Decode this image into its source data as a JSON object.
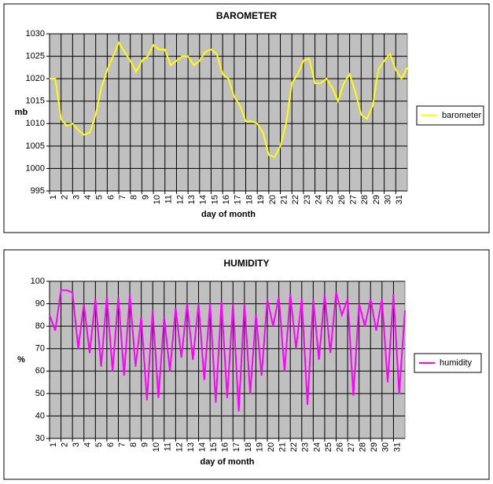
{
  "chart_data": [
    {
      "type": "line",
      "title": "BAROMETER",
      "x_label": "day of month",
      "y_label": "mb",
      "xlim": [
        1,
        32
      ],
      "xticks": [
        1,
        2,
        3,
        4,
        5,
        6,
        7,
        8,
        9,
        10,
        11,
        12,
        13,
        14,
        15,
        16,
        17,
        18,
        19,
        20,
        21,
        22,
        23,
        24,
        25,
        26,
        27,
        28,
        29,
        30,
        31
      ],
      "ylim": [
        995,
        1030
      ],
      "yticks": [
        995,
        1000,
        1005,
        1010,
        1015,
        1020,
        1025,
        1030
      ],
      "grid": true,
      "legend": "right",
      "series": [
        {
          "name": "barometer",
          "color": "#ffff00",
          "x": [
            1,
            1.5,
            2,
            2.5,
            3,
            3.5,
            4,
            4.5,
            5,
            5.5,
            6,
            6.5,
            7,
            7.5,
            8,
            8.5,
            9,
            9.5,
            10,
            10.5,
            11,
            11.5,
            12,
            12.5,
            13,
            13.5,
            14,
            14.5,
            15,
            15.5,
            16,
            16.5,
            17,
            17.5,
            18,
            18.5,
            19,
            19.5,
            20,
            20.5,
            21,
            21.5,
            22,
            22.5,
            23,
            23.5,
            24,
            24.5,
            25,
            25.5,
            26,
            26.5,
            27,
            27.5,
            28,
            28.5,
            29,
            29.5,
            30,
            30.5,
            31,
            31.5,
            32
          ],
          "values": [
            1020,
            1020,
            1011,
            1009.5,
            1010,
            1008.5,
            1007.5,
            1008,
            1012,
            1018,
            1022,
            1025,
            1028,
            1026,
            1024,
            1021.5,
            1024,
            1025,
            1027.5,
            1026.5,
            1026.5,
            1023,
            1024,
            1025,
            1025,
            1023,
            1024,
            1026,
            1026.5,
            1025.5,
            1021,
            1020,
            1016,
            1014,
            1010.5,
            1010.5,
            1010,
            1008,
            1003,
            1002.5,
            1005,
            1010,
            1019,
            1021,
            1024,
            1024.5,
            1019,
            1019,
            1020,
            1018,
            1015,
            1019,
            1021,
            1017,
            1012,
            1011,
            1014,
            1022,
            1024,
            1025.5,
            1022,
            1020,
            1022.5
          ]
        }
      ]
    },
    {
      "type": "line",
      "title": "HUMIDITY",
      "x_label": "day of month",
      "y_label": "%",
      "xlim": [
        1,
        32
      ],
      "xticks": [
        1,
        2,
        3,
        4,
        5,
        6,
        7,
        8,
        9,
        10,
        11,
        12,
        13,
        14,
        15,
        16,
        17,
        18,
        19,
        20,
        21,
        22,
        23,
        24,
        25,
        26,
        27,
        28,
        29,
        30,
        31
      ],
      "ylim": [
        30,
        100
      ],
      "yticks": [
        30,
        40,
        50,
        60,
        70,
        80,
        90,
        100
      ],
      "grid": true,
      "legend": "right",
      "series": [
        {
          "name": "humidity",
          "color": "#ff00ff",
          "x": [
            1,
            1.5,
            2,
            2.5,
            3,
            3.5,
            4,
            4.5,
            5,
            5.5,
            6,
            6.5,
            7,
            7.5,
            8,
            8.5,
            9,
            9.5,
            10,
            10.5,
            11,
            11.5,
            12,
            12.5,
            13,
            13.5,
            14,
            14.5,
            15,
            15.5,
            16,
            16.5,
            17,
            17.5,
            18,
            18.5,
            19,
            19.5,
            20,
            20.5,
            21,
            21.5,
            22,
            22.5,
            23,
            23.5,
            24,
            24.5,
            25,
            25.5,
            26,
            26.5,
            27,
            27.5,
            28,
            28.5,
            29,
            29.5,
            30,
            30.5,
            31,
            31.5,
            32
          ],
          "values": [
            85,
            78,
            96,
            96,
            95,
            70,
            90,
            68,
            92,
            62,
            93,
            60,
            93,
            58,
            94,
            62,
            84,
            47,
            87,
            48,
            84,
            60,
            88,
            66,
            90,
            65,
            90,
            56,
            90,
            46,
            91,
            48,
            90,
            42,
            90,
            50,
            85,
            58,
            92,
            80,
            93,
            60,
            94,
            70,
            92,
            45,
            92,
            65,
            94,
            68,
            95,
            85,
            92,
            49,
            90,
            80,
            92,
            78,
            92,
            55,
            94,
            50,
            87
          ]
        }
      ]
    }
  ]
}
